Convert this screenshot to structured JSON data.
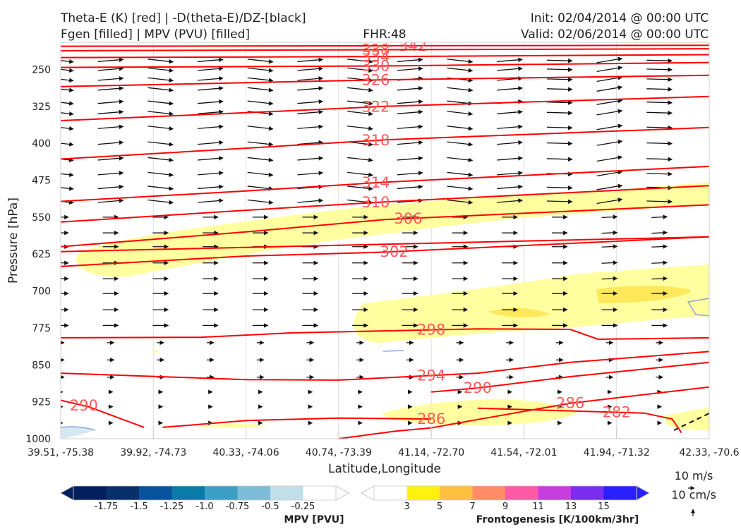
{
  "header": {
    "line1_left": "Theta-E (K) [red] | -D(theta-E)/DZ-[black]",
    "line2_left": "Fgen [filled] | MPV (PVU) [filled]",
    "fhr": "FHR:48",
    "init": "Init: 02/04/2014 @ 00:00 UTC",
    "valid": "Valid: 02/06/2014 @ 00:00 UTC"
  },
  "colors": {
    "theta_e": "#ff0000",
    "theta_e_label": "#ff5a5a",
    "fgen_light": "#ffffa0",
    "fgen_mid": "#ffe85a",
    "mpv_contour": "#8fa4d8",
    "mpv_fill": "#d6e8f4",
    "arrows": "#111111"
  },
  "chart_data": {
    "type": "cross-section",
    "xlabel": "Latitude,Longitude",
    "ylabel": "Pressure [hPa]",
    "x_tick_labels": [
      "39.51, -75.38",
      "39.92, -74.73",
      "40.33, -74.06",
      "40.74, -73.39",
      "41.14, -72.70",
      "41.54, -72.01",
      "41.94, -71.32",
      "42.33, -70.6"
    ],
    "y_ticks": [
      250,
      325,
      400,
      475,
      550,
      625,
      700,
      775,
      850,
      925,
      1000
    ],
    "y_range": [
      195,
      1000
    ],
    "x_range": [
      0,
      7
    ],
    "theta_e_contours": [
      {
        "label": "342",
        "points": [
          [
            0,
            203
          ],
          [
            3.5,
            202
          ],
          [
            7,
            201
          ]
        ],
        "label_at": 3.8
      },
      {
        "label": "338",
        "points": [
          [
            0,
            212
          ],
          [
            3.5,
            210
          ],
          [
            7,
            208
          ]
        ],
        "label_at": 3.4
      },
      {
        "label": "334",
        "points": [
          [
            0,
            226
          ],
          [
            3.5,
            224
          ],
          [
            7,
            220
          ]
        ],
        "label_at": 3.4
      },
      {
        "label": "330",
        "points": [
          [
            0,
            246
          ],
          [
            3.5,
            243
          ],
          [
            7,
            236
          ]
        ],
        "label_at": 3.4
      },
      {
        "label": "326",
        "points": [
          [
            0,
            285
          ],
          [
            2,
            277
          ],
          [
            3.5,
            271
          ],
          [
            7,
            262
          ]
        ],
        "label_at": 3.4
      },
      {
        "label": "322",
        "points": [
          [
            0,
            354
          ],
          [
            2,
            338
          ],
          [
            3.5,
            325
          ],
          [
            7,
            305
          ]
        ],
        "label_at": 3.4
      },
      {
        "label": "318",
        "points": [
          [
            0,
            432
          ],
          [
            2,
            410
          ],
          [
            3.5,
            393
          ],
          [
            7,
            368
          ]
        ],
        "label_at": 3.4
      },
      {
        "label": "314",
        "points": [
          [
            0,
            518
          ],
          [
            2,
            497
          ],
          [
            3.5,
            479
          ],
          [
            7,
            447
          ]
        ],
        "label_at": 3.4
      },
      {
        "label": "310",
        "points": [
          [
            0,
            560
          ],
          [
            2,
            536
          ],
          [
            3.5,
            519
          ],
          [
            7,
            486
          ]
        ],
        "label_at": 3.4
      },
      {
        "label": "306",
        "points": [
          [
            0,
            610
          ],
          [
            2,
            580
          ],
          [
            3.5,
            555
          ],
          [
            7,
            525
          ]
        ],
        "label_at": 3.75
      },
      {
        "label": "302",
        "points": [
          [
            0,
            650
          ],
          [
            2,
            629
          ],
          [
            3.5,
            621
          ],
          [
            7,
            590
          ]
        ],
        "label_at": 3.6
      },
      {
        "label": "298",
        "points": [
          [
            0,
            795
          ],
          [
            1.5,
            794
          ],
          [
            2.5,
            785
          ],
          [
            3.5,
            781
          ],
          [
            4.5,
            777
          ],
          [
            5.5,
            778
          ],
          [
            5.8,
            798
          ],
          [
            7,
            795
          ]
        ],
        "label_at": 4
      },
      {
        "label": "294",
        "points": [
          [
            0,
            867
          ],
          [
            2,
            880
          ],
          [
            3,
            881
          ],
          [
            4.5,
            867
          ],
          [
            5.5,
            845
          ],
          [
            7,
            823
          ]
        ],
        "label_at": 4
      },
      {
        "label": "290",
        "points": [
          [
            4,
            905
          ],
          [
            4.5,
            897
          ],
          [
            5.5,
            874
          ],
          [
            7,
            845
          ]
        ],
        "label_at": 4.5
      },
      {
        "label": "290",
        "points": [
          [
            0,
            922
          ],
          [
            0.3,
            935
          ],
          [
            0.9,
            977
          ]
        ],
        "label_at": 0.25
      },
      {
        "label": "286",
        "points": [
          [
            1.1,
            977
          ],
          [
            2,
            963
          ],
          [
            3,
            958
          ],
          [
            4,
            960
          ]
        ],
        "label_at": 4
      },
      {
        "label": "286",
        "points": [
          [
            3,
            1000
          ],
          [
            3.6,
            985
          ],
          [
            4,
            978
          ],
          [
            4.5,
            961
          ],
          [
            5.5,
            928
          ],
          [
            7,
            895
          ]
        ],
        "label_at": 5.5
      },
      {
        "label": "282",
        "points": [
          [
            4.5,
            938
          ],
          [
            6.3,
            948
          ],
          [
            6.6,
            960
          ],
          [
            6.7,
            988
          ]
        ],
        "label_at": 6
      },
      {
        "label": "",
        "points": [
          [
            0,
            620
          ],
          [
            7,
            590
          ]
        ],
        "label_at": 3.5
      }
    ],
    "mpv_filled_levels": [
      -1.75,
      -1.5,
      -1.25,
      -1.0,
      -0.75,
      -0.5,
      -0.25
    ],
    "mpv_colorbar_label": "MPV [PVU]",
    "fgen_filled_levels": [
      3,
      5,
      7,
      9,
      11,
      13,
      15
    ],
    "fgen_colorbar_label": "Frontogenesis [K/100km/3hr]",
    "reference_vectors": [
      "10 m/s",
      "10 cm/s"
    ],
    "grid": true
  }
}
